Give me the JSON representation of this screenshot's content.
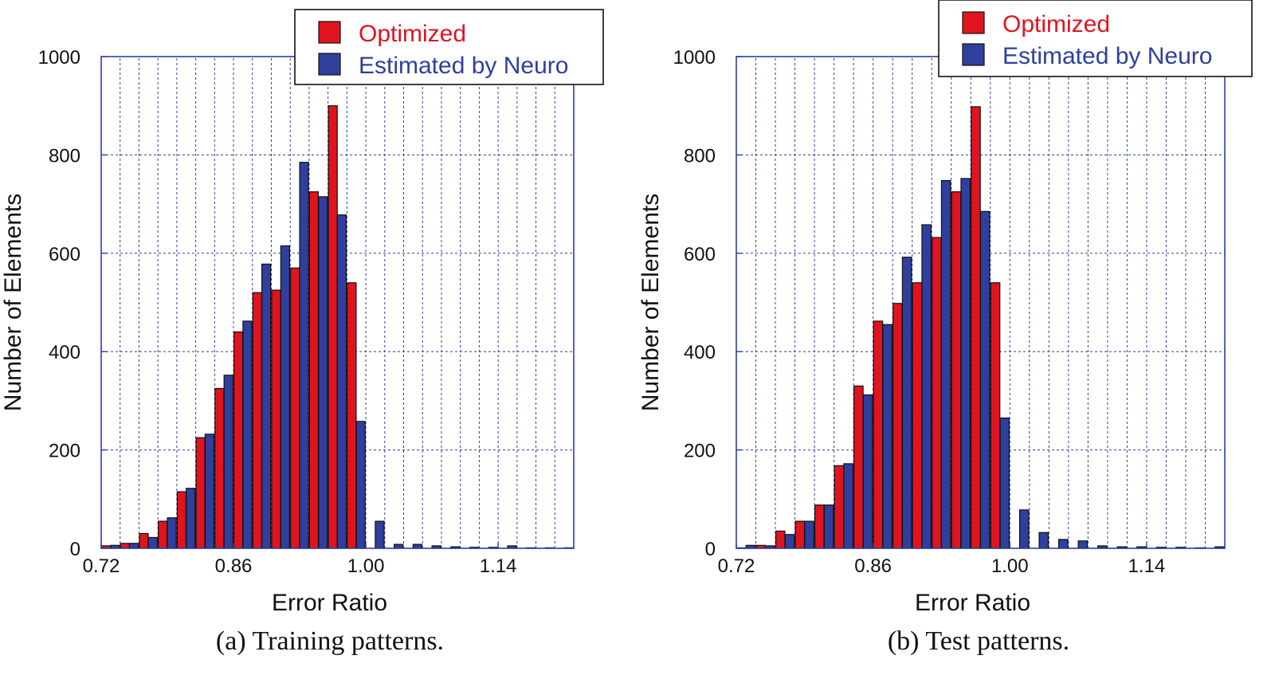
{
  "chart_data": [
    {
      "type": "bar",
      "caption": "(a) Training patterns.",
      "xlabel": "Error Ratio",
      "ylabel": "Number of Elements",
      "xlim": [
        0.72,
        1.22
      ],
      "ylim": [
        0,
        1000
      ],
      "xticks": [
        "0.72",
        "0.86",
        "1.00",
        "1.14"
      ],
      "yticks": [
        "0",
        "200",
        "400",
        "600",
        "800",
        "1000"
      ],
      "grid": true,
      "legend_position": "top-right",
      "bin_width": 0.02,
      "series": [
        {
          "name": "Optimized",
          "color": "#e0141e",
          "x": [
            0.73,
            0.75,
            0.77,
            0.79,
            0.81,
            0.83,
            0.85,
            0.87,
            0.89,
            0.91,
            0.93,
            0.95,
            0.97,
            0.99,
            1.01,
            1.03,
            1.05,
            1.07,
            1.09,
            1.11,
            1.13,
            1.15,
            1.17,
            1.19,
            1.21
          ],
          "values": [
            5,
            10,
            30,
            55,
            115,
            225,
            325,
            440,
            520,
            525,
            570,
            725,
            900,
            540,
            0,
            0,
            0,
            0,
            0,
            0,
            0,
            0,
            0,
            0,
            0
          ]
        },
        {
          "name": "Estimated by Neuro",
          "color": "#2e3f9e",
          "x": [
            0.73,
            0.75,
            0.77,
            0.79,
            0.81,
            0.83,
            0.85,
            0.87,
            0.89,
            0.91,
            0.93,
            0.95,
            0.97,
            0.99,
            1.01,
            1.03,
            1.05,
            1.07,
            1.09,
            1.11,
            1.13,
            1.15,
            1.17,
            1.19,
            1.21
          ],
          "values": [
            6,
            10,
            22,
            62,
            122,
            232,
            352,
            462,
            578,
            615,
            785,
            715,
            678,
            258,
            55,
            8,
            8,
            5,
            3,
            2,
            2,
            5,
            1,
            1,
            1
          ]
        }
      ]
    },
    {
      "type": "bar",
      "caption": "(b) Test patterns.",
      "xlabel": "Error Ratio",
      "ylabel": "Number of Elements",
      "xlim": [
        0.72,
        1.22
      ],
      "ylim": [
        0,
        1000
      ],
      "xticks": [
        "0.72",
        "0.86",
        "1.00",
        "1.14"
      ],
      "yticks": [
        "0",
        "200",
        "400",
        "600",
        "800",
        "1000"
      ],
      "grid": true,
      "legend_position": "top-right",
      "bin_width": 0.02,
      "series": [
        {
          "name": "Optimized",
          "color": "#e0141e",
          "x": [
            0.73,
            0.75,
            0.77,
            0.79,
            0.81,
            0.83,
            0.85,
            0.87,
            0.89,
            0.91,
            0.93,
            0.95,
            0.97,
            0.99,
            1.01,
            1.03,
            1.05,
            1.07,
            1.09,
            1.11,
            1.13,
            1.15,
            1.17,
            1.19,
            1.21
          ],
          "values": [
            1,
            6,
            35,
            55,
            88,
            168,
            330,
            462,
            498,
            540,
            632,
            725,
            898,
            540,
            0,
            0,
            0,
            0,
            0,
            0,
            0,
            0,
            0,
            0,
            0
          ]
        },
        {
          "name": "Estimated by Neuro",
          "color": "#2e3f9e",
          "x": [
            0.73,
            0.75,
            0.77,
            0.79,
            0.81,
            0.83,
            0.85,
            0.87,
            0.89,
            0.91,
            0.93,
            0.95,
            0.97,
            0.99,
            1.01,
            1.03,
            1.05,
            1.07,
            1.09,
            1.11,
            1.13,
            1.15,
            1.17,
            1.19,
            1.21
          ],
          "values": [
            6,
            5,
            28,
            55,
            88,
            172,
            312,
            455,
            592,
            658,
            748,
            752,
            685,
            265,
            78,
            32,
            18,
            15,
            5,
            3,
            3,
            2,
            2,
            1,
            3
          ]
        }
      ]
    }
  ]
}
